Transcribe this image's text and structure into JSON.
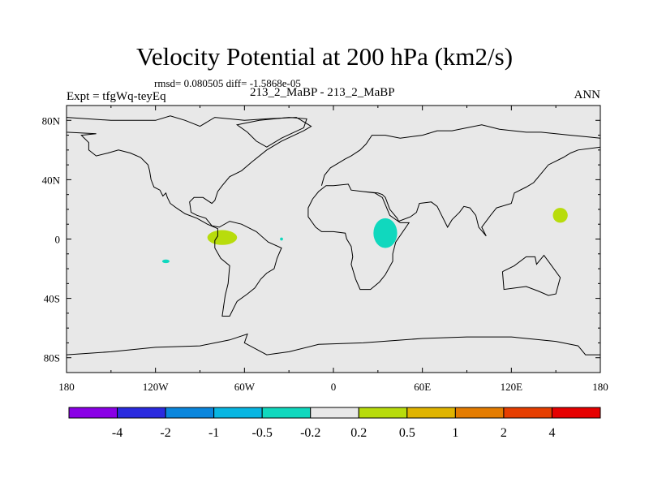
{
  "title": "Velocity Potential at 200 hPa (km2/s)",
  "stats_line": "rmsd= 0.080505 diff= -1.5868e-05",
  "experiment": "Expt = tfgWq-teyEq",
  "case_line": "213_2_MaBP - 213_2_MaBP",
  "season": "ANN",
  "background_color": "#e8e8e8",
  "axes": {
    "x_range": [
      -180,
      180
    ],
    "y_range": [
      -90,
      90
    ],
    "x_tick_labels": [
      {
        "value": -180,
        "label": "180"
      },
      {
        "value": -120,
        "label": "120W"
      },
      {
        "value": -60,
        "label": "60W"
      },
      {
        "value": 0,
        "label": "0"
      },
      {
        "value": 60,
        "label": "60E"
      },
      {
        "value": 120,
        "label": "120E"
      },
      {
        "value": 180,
        "label": "180"
      }
    ],
    "y_tick_labels": [
      {
        "value": 80,
        "label": "80N"
      },
      {
        "value": 40,
        "label": "40N"
      },
      {
        "value": 0,
        "label": "0"
      },
      {
        "value": -40,
        "label": "40S"
      },
      {
        "value": -80,
        "label": "80S"
      }
    ]
  },
  "colorbar": {
    "colors": [
      "#8a00e6",
      "#2a2adf",
      "#0a86dd",
      "#08b6e2",
      "#10d8be",
      "#e8e8e8",
      "#b8dc0c",
      "#e0b400",
      "#e47c00",
      "#e63e00",
      "#e60000"
    ],
    "labels": [
      "-4",
      "-2",
      "-1",
      "-0.5",
      "-0.2",
      "0.2",
      "0.5",
      "1",
      "2",
      "4"
    ]
  },
  "anomaly_regions": [
    {
      "name": "region-pacific-east-positive",
      "color": "#b8dc0c",
      "lon": -75,
      "lat": 1,
      "lon_radius": 10,
      "lat_radius": 5
    },
    {
      "name": "region-pacific-southeast-negative",
      "color": "#10d8be",
      "lon": -113,
      "lat": -15,
      "lon_radius": 2.5,
      "lat_radius": 1.2
    },
    {
      "name": "region-atlantic-small-negative",
      "color": "#10d8be",
      "lon": -35,
      "lat": 0,
      "lon_radius": 1,
      "lat_radius": 1
    },
    {
      "name": "region-africa-negative",
      "color": "#10d8be",
      "lon": 35,
      "lat": 4,
      "lon_radius": 8,
      "lat_radius": 10
    },
    {
      "name": "region-west-pacific-positive",
      "color": "#b8dc0c",
      "lon": 153,
      "lat": 16,
      "lon_radius": 5,
      "lat_radius": 5
    }
  ],
  "coastline_outlines": [
    {
      "name": "coastline-americas",
      "points": [
        [
          -180,
          82
        ],
        [
          -150,
          80
        ],
        [
          -140,
          80
        ],
        [
          -120,
          80
        ],
        [
          -110,
          83
        ],
        [
          -100,
          80
        ],
        [
          -90,
          76
        ],
        [
          -80,
          82
        ],
        [
          -60,
          80
        ],
        [
          -45,
          81
        ],
        [
          -25,
          82
        ],
        [
          -15,
          76
        ],
        [
          -20,
          73
        ],
        [
          -35,
          66
        ],
        [
          -45,
          60
        ],
        [
          -55,
          52
        ],
        [
          -62,
          46
        ],
        [
          -70,
          42
        ],
        [
          -75,
          36
        ],
        [
          -78,
          32
        ],
        [
          -80,
          26
        ],
        [
          -82,
          24
        ],
        [
          -88,
          28
        ],
        [
          -94,
          28
        ],
        [
          -97,
          25
        ],
        [
          -96,
          18
        ],
        [
          -92,
          16
        ],
        [
          -86,
          14
        ],
        [
          -82,
          9
        ],
        [
          -77,
          8
        ],
        [
          -70,
          12
        ],
        [
          -62,
          10
        ],
        [
          -52,
          5
        ],
        [
          -44,
          -2
        ],
        [
          -35,
          -6
        ],
        [
          -38,
          -13
        ],
        [
          -40,
          -20
        ],
        [
          -45,
          -23
        ],
        [
          -49,
          -27
        ],
        [
          -53,
          -33
        ],
        [
          -58,
          -37
        ],
        [
          -65,
          -42
        ],
        [
          -67,
          -46
        ],
        [
          -70,
          -52
        ],
        [
          -75,
          -52
        ],
        [
          -74,
          -45
        ],
        [
          -73,
          -38
        ],
        [
          -71,
          -30
        ],
        [
          -70,
          -18
        ],
        [
          -76,
          -13
        ],
        [
          -80,
          -6
        ],
        [
          -80,
          -1
        ],
        [
          -78,
          2
        ],
        [
          -78,
          7
        ],
        [
          -85,
          10
        ],
        [
          -92,
          14
        ],
        [
          -100,
          17
        ],
        [
          -106,
          21
        ],
        [
          -110,
          24
        ],
        [
          -112,
          28
        ],
        [
          -113,
          31
        ],
        [
          -115,
          29
        ],
        [
          -117,
          33
        ],
        [
          -121,
          35
        ],
        [
          -123,
          40
        ],
        [
          -124,
          46
        ],
        [
          -125,
          50
        ],
        [
          -130,
          55
        ],
        [
          -137,
          58
        ],
        [
          -145,
          60
        ],
        [
          -152,
          58
        ],
        [
          -160,
          56
        ],
        [
          -165,
          60
        ],
        [
          -165,
          65
        ],
        [
          -170,
          70
        ],
        [
          -160,
          71
        ],
        [
          -180,
          72
        ],
        [
          -180,
          82
        ]
      ]
    },
    {
      "name": "coastline-greenland-islands",
      "points": [
        [
          -50,
          80
        ],
        [
          -30,
          82
        ],
        [
          -18,
          81
        ],
        [
          -20,
          75
        ],
        [
          -35,
          68
        ],
        [
          -45,
          62
        ],
        [
          -52,
          66
        ],
        [
          -58,
          72
        ],
        [
          -65,
          77
        ],
        [
          -50,
          80
        ]
      ]
    },
    {
      "name": "coastline-eurasia-africa",
      "points": [
        [
          -8,
          36
        ],
        [
          -6,
          43
        ],
        [
          -2,
          48
        ],
        [
          3,
          51
        ],
        [
          8,
          54
        ],
        [
          12,
          56
        ],
        [
          18,
          60
        ],
        [
          22,
          64
        ],
        [
          26,
          70
        ],
        [
          35,
          70
        ],
        [
          45,
          68
        ],
        [
          60,
          70
        ],
        [
          70,
          73
        ],
        [
          80,
          73
        ],
        [
          100,
          77
        ],
        [
          112,
          74
        ],
        [
          130,
          72
        ],
        [
          140,
          72
        ],
        [
          160,
          70
        ],
        [
          170,
          69
        ],
        [
          180,
          68
        ],
        [
          180,
          62
        ],
        [
          165,
          60
        ],
        [
          160,
          58
        ],
        [
          155,
          55
        ],
        [
          145,
          50
        ],
        [
          140,
          44
        ],
        [
          135,
          38
        ],
        [
          130,
          35
        ],
        [
          122,
          31
        ],
        [
          120,
          24
        ],
        [
          110,
          21
        ],
        [
          106,
          16
        ],
        [
          100,
          8
        ],
        [
          103,
          2
        ],
        [
          98,
          8
        ],
        [
          96,
          16
        ],
        [
          92,
          21
        ],
        [
          88,
          22
        ],
        [
          85,
          18
        ],
        [
          80,
          13
        ],
        [
          77,
          8
        ],
        [
          73,
          16
        ],
        [
          70,
          22
        ],
        [
          66,
          25
        ],
        [
          58,
          24
        ],
        [
          56,
          18
        ],
        [
          52,
          15
        ],
        [
          44,
          12
        ],
        [
          43,
          14
        ],
        [
          38,
          20
        ],
        [
          35,
          28
        ],
        [
          33,
          30
        ],
        [
          30,
          31
        ],
        [
          20,
          32
        ],
        [
          12,
          33
        ],
        [
          10,
          37
        ],
        [
          0,
          36
        ],
        [
          -5,
          36
        ],
        [
          -10,
          32
        ],
        [
          -14,
          27
        ],
        [
          -17,
          21
        ],
        [
          -17,
          15
        ],
        [
          -12,
          8
        ],
        [
          -8,
          5
        ],
        [
          0,
          5
        ],
        [
          8,
          4
        ],
        [
          9,
          0
        ],
        [
          12,
          -5
        ],
        [
          13,
          -12
        ],
        [
          12,
          -17
        ],
        [
          15,
          -27
        ],
        [
          18,
          -34
        ],
        [
          25,
          -34
        ],
        [
          31,
          -29
        ],
        [
          35,
          -24
        ],
        [
          40,
          -15
        ],
        [
          40,
          -10
        ],
        [
          42,
          -2
        ],
        [
          51,
          11
        ],
        [
          45,
          11
        ],
        [
          38,
          16
        ],
        [
          33,
          28
        ],
        [
          28,
          31
        ],
        [
          20,
          32
        ]
      ]
    },
    {
      "name": "coastline-australia",
      "points": [
        [
          114,
          -22
        ],
        [
          122,
          -18
        ],
        [
          130,
          -12
        ],
        [
          136,
          -12
        ],
        [
          137,
          -17
        ],
        [
          142,
          -11
        ],
        [
          145,
          -15
        ],
        [
          153,
          -26
        ],
        [
          150,
          -37
        ],
        [
          145,
          -38
        ],
        [
          138,
          -35
        ],
        [
          130,
          -32
        ],
        [
          115,
          -34
        ],
        [
          114,
          -22
        ]
      ]
    },
    {
      "name": "coastline-antarctica",
      "points": [
        [
          -180,
          -78
        ],
        [
          -150,
          -76
        ],
        [
          -120,
          -73
        ],
        [
          -90,
          -72
        ],
        [
          -70,
          -68
        ],
        [
          -58,
          -64
        ],
        [
          -60,
          -70
        ],
        [
          -45,
          -78
        ],
        [
          -30,
          -76
        ],
        [
          -10,
          -71
        ],
        [
          20,
          -70
        ],
        [
          60,
          -67
        ],
        [
          90,
          -66
        ],
        [
          120,
          -66
        ],
        [
          150,
          -69
        ],
        [
          165,
          -72
        ],
        [
          170,
          -78
        ],
        [
          180,
          -78
        ]
      ]
    }
  ]
}
